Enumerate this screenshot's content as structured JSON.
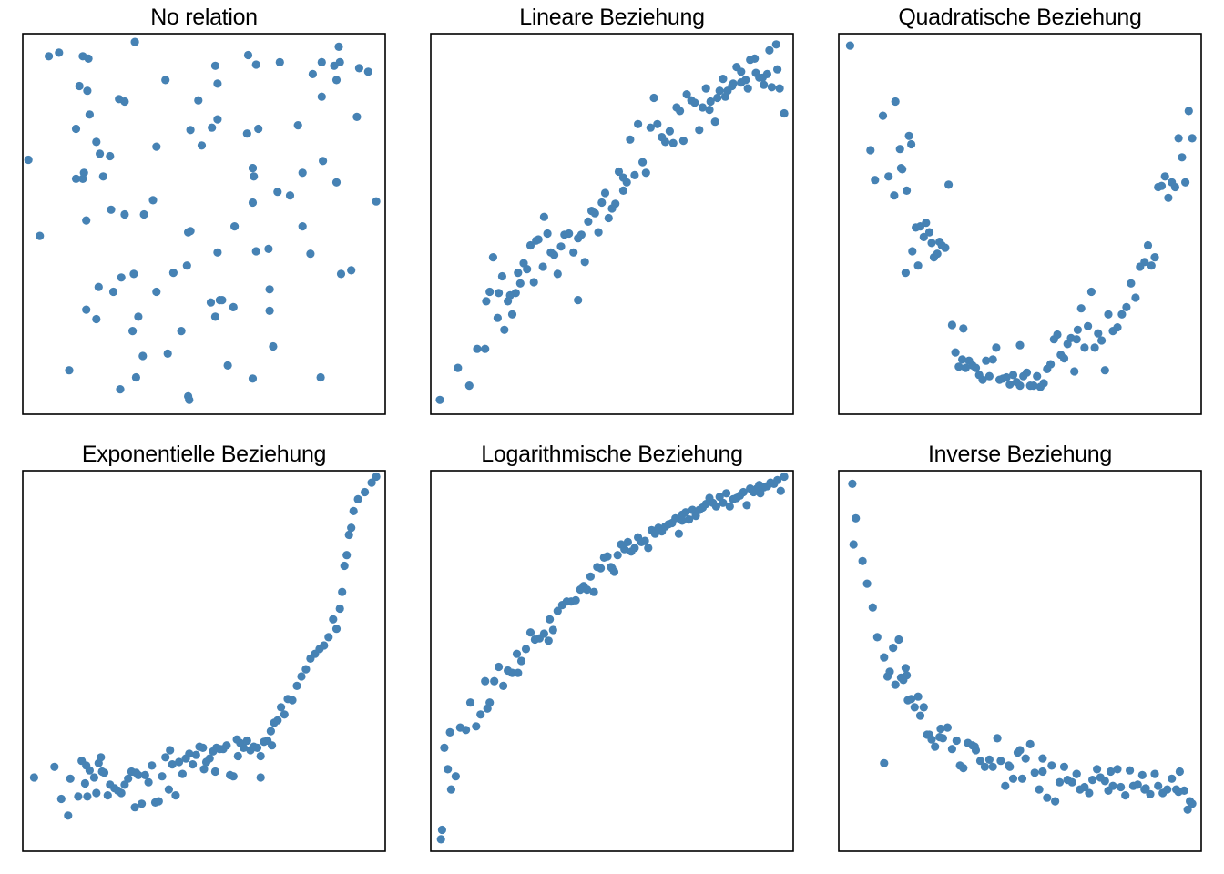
{
  "colors": {
    "point": "#4682B4",
    "frame": "#000000",
    "background": "#ffffff"
  },
  "chart_data": [
    {
      "type": "scatter",
      "title": "No relation",
      "xlim": [
        -1.6,
        1.6
      ],
      "ylim": [
        -1.6,
        1.6
      ],
      "axes_visible": false,
      "grid": false,
      "x": [
        0.43,
        0.46,
        -0.83,
        -1.45,
        -1.1,
        -0.02,
        -1.55,
        1.03,
        1.3,
        -0.89,
        -0.58,
        -1.37,
        1.35,
        0.38,
        0.26,
        -0.7,
        -0.34,
        0.58,
        0.43,
        0.87,
        0.1,
        -0.95,
        -0.53,
        0.57,
        0.27,
        0.76,
        0.87,
        0.46,
        1.45,
        0.12,
        -0.27,
        -1.04,
        -0.82,
        0.21,
        0.1,
        0.67,
        1.17,
        0.94,
        -0.92,
        -1.06,
        -0.12,
        -1.28,
        0.14,
        0.12,
        -0.14,
        -0.54,
        -0.32,
        -0.7,
        -1.07,
        -1.19,
        -0.63,
        1.2,
        1.04,
        1.37,
        0.65,
        -0.42,
        0.58,
        1.17,
        1.05,
        -1.03,
        -1.13,
        -0.93,
        -1.02,
        -0.74,
        0.43,
        0.61,
        -1.13,
        -0.14,
        0.12,
        1.21,
        -0.62,
        -0.75,
        -1.07,
        -1.04,
        -0.45,
        -0.8,
        -0.2,
        -0.61,
        -0.95,
        -0.6,
        0.96,
        -1.01,
        1.52,
        1.04,
        -0.73,
        -0.13,
        0.83,
        0.16,
        0.44,
        -0.15,
        0.06,
        -0.12,
        -0.42,
        0.43,
        -0.05,
        0.07,
        1.19,
        1.15,
        0.39,
        0.48
      ],
      "y": [
        -1.3,
        1.34,
        0.57,
        -0.1,
        1.16,
        0.66,
        0.54,
        -1.29,
        -0.39,
        0.4,
        -0.78,
        1.41,
        0.9,
        0.76,
        -0.7,
        0.08,
        1.21,
        -0.55,
        0.47,
        -0.02,
        1.33,
        -0.8,
        0.08,
        -0.21,
        -0.02,
        0.24,
        0.43,
        -0.23,
        1.28,
        1.18,
        -0.41,
        0.03,
        0.12,
        -1.19,
        -0.78,
        1.36,
        0.35,
        -0.25,
        0.59,
        0.43,
        -0.06,
        1.44,
        -0.64,
        -0.24,
        -0.07,
        -1.11,
        -1.09,
        1.03,
        1.41,
        -1.23,
        -0.9,
        1.36,
        1.07,
        1.31,
        0.27,
        0.65,
        -0.73,
        1.21,
        0.53,
        1.12,
        0.8,
        -0.53,
        1.39,
        -1.39,
        0.47,
        -1.03,
        0.38,
        -1.45,
        0.88,
        -0.42,
        -0.42,
        1.05,
        0.38,
        -0.72,
        0.2,
        -0.57,
        -0.9,
        1.53,
        0.69,
        -1.29,
        1.26,
        0.92,
        0.19,
        1.36,
        -0.45,
        -1.48,
        0.83,
        -0.64,
        0.4,
        -0.35,
        -0.66,
        0.79,
        -0.57,
        0.18,
        1.04,
        0.81,
        1.49,
        1.33,
        1.42,
        0.8
      ]
    },
    {
      "type": "scatter",
      "title": "Lineare Beziehung",
      "xlim": [
        -1.6,
        1.6
      ],
      "ylim": [
        -1.6,
        1.6
      ],
      "axes_visible": false,
      "grid": false,
      "x": [
        -1.52,
        -1.36,
        -1.26,
        -1.19,
        -1.12,
        -1.11,
        -1.08,
        -1.05,
        -1.01,
        -1.0,
        -0.97,
        -0.95,
        -0.92,
        -0.88,
        -0.85,
        -0.83,
        -0.81,
        -0.78,
        -0.75,
        -0.72,
        -0.69,
        -0.67,
        -0.65,
        -0.61,
        -0.57,
        -0.54,
        -0.51,
        -0.48,
        -0.45,
        -0.42,
        -0.38,
        -0.34,
        -0.3,
        -0.27,
        -0.24,
        -0.21,
        -0.18,
        -0.15,
        -0.12,
        -0.09,
        -0.06,
        -0.03,
        0.0,
        0.03,
        0.06,
        0.1,
        0.13,
        0.16,
        0.2,
        0.23,
        0.27,
        0.3,
        0.34,
        0.37,
        0.4,
        0.44,
        0.47,
        0.51,
        0.54,
        0.57,
        0.6,
        0.63,
        0.66,
        0.7,
        0.73,
        0.77,
        0.8,
        0.83,
        0.87,
        0.91,
        0.95,
        0.98,
        1.02,
        1.06,
        1.1,
        1.14,
        1.18,
        1.22,
        1.26,
        1.3,
        1.34,
        1.37,
        1.41,
        1.45,
        1.48,
        1.52,
        1.46,
        1.39,
        1.33,
        1.27,
        1.2,
        1.14,
        1.07,
        1.0,
        0.93,
        0.86,
        -0.9,
        -0.6,
        -0.3,
        0.1
      ],
      "y": [
        -1.48,
        -1.21,
        -1.36,
        -1.05,
        -1.05,
        -0.65,
        -0.57,
        -0.28,
        -0.79,
        -0.58,
        -0.44,
        -0.89,
        -0.65,
        -0.76,
        -0.58,
        -0.41,
        -0.5,
        -0.33,
        -0.38,
        -0.18,
        -0.49,
        -0.14,
        -0.13,
        -0.36,
        -0.08,
        -0.24,
        -0.26,
        -0.42,
        -0.19,
        -0.09,
        -0.08,
        -0.24,
        -0.12,
        -0.09,
        -0.32,
        0.02,
        0.11,
        0.09,
        -0.07,
        0.18,
        0.26,
        0.05,
        0.13,
        0.17,
        0.44,
        0.28,
        0.35,
        0.71,
        0.41,
        0.84,
        0.52,
        0.43,
        0.81,
        1.06,
        0.84,
        0.73,
        0.69,
        0.78,
        0.68,
        0.98,
        0.95,
        0.7,
        1.09,
        1.04,
        1.02,
        0.79,
        0.98,
        1.14,
        1.03,
        0.86,
        1.12,
        1.22,
        1.12,
        1.16,
        1.32,
        1.28,
        1.21,
        1.38,
        1.39,
        1.23,
        1.17,
        1.26,
        1.15,
        1.51,
        1.14,
        0.93,
        1.3,
        1.46,
        1.23,
        1.27,
        1.14,
        1.19,
        1.18,
        1.07,
        1.06,
        0.96,
        -0.6,
        0.06,
        -0.64,
        0.39
      ]
    },
    {
      "type": "scatter",
      "title": "Quadratische Beziehung",
      "xlim": [
        -1.6,
        1.6
      ],
      "ylim": [
        -1.6,
        1.6
      ],
      "axes_visible": false,
      "grid": false,
      "x": [
        -1.5,
        -1.32,
        -1.28,
        -1.21,
        -1.16,
        -1.11,
        -1.1,
        -1.06,
        -1.05,
        -1.04,
        -1.01,
        -1.0,
        -0.98,
        -0.96,
        -0.95,
        -0.92,
        -0.9,
        -0.88,
        -0.85,
        -0.83,
        -0.8,
        -0.78,
        -0.76,
        -0.73,
        -0.71,
        -0.69,
        -0.66,
        -0.63,
        -0.6,
        -0.57,
        -0.54,
        -0.51,
        -0.48,
        -0.45,
        -0.42,
        -0.39,
        -0.36,
        -0.33,
        -0.3,
        -0.27,
        -0.24,
        -0.21,
        -0.18,
        -0.15,
        -0.12,
        -0.09,
        -0.06,
        -0.03,
        0.0,
        0.03,
        0.06,
        0.09,
        0.12,
        0.15,
        0.18,
        0.21,
        0.24,
        0.27,
        0.3,
        0.33,
        0.36,
        0.39,
        0.42,
        0.45,
        0.48,
        0.51,
        0.54,
        0.57,
        0.6,
        0.63,
        0.66,
        0.69,
        0.72,
        0.75,
        0.78,
        0.82,
        0.86,
        0.9,
        0.94,
        0.98,
        1.02,
        1.06,
        1.1,
        1.13,
        1.16,
        1.19,
        1.22,
        1.25,
        1.28,
        1.31,
        1.34,
        1.37,
        1.4,
        1.43,
        1.46,
        1.49,
        1.52,
        -0.5,
        0.5,
        0.0
      ],
      "y": [
        1.5,
        0.62,
        0.37,
        0.91,
        0.4,
        0.24,
        1.03,
        0.63,
        0.47,
        0.46,
        -0.41,
        0.28,
        0.74,
        0.67,
        -0.23,
        -0.03,
        -0.35,
        -0.02,
        -0.11,
        0.01,
        -0.07,
        -0.16,
        -0.28,
        -0.25,
        -0.15,
        -0.18,
        -0.2,
        0.33,
        -0.85,
        -1.08,
        -1.2,
        -1.14,
        -1.21,
        -1.15,
        -1.19,
        -1.21,
        -1.27,
        -1.31,
        -1.15,
        -1.28,
        -1.14,
        -1.04,
        -1.31,
        -1.3,
        -1.29,
        -1.35,
        -1.27,
        -1.33,
        -1.36,
        -1.28,
        -1.25,
        -1.36,
        -1.36,
        -1.28,
        -1.37,
        -1.34,
        -1.22,
        -1.18,
        -0.97,
        -0.93,
        -1.1,
        -1.13,
        -1.01,
        -0.96,
        -1.24,
        -0.89,
        -0.71,
        -1.04,
        -0.86,
        -0.57,
        -1.04,
        -0.92,
        -0.98,
        -1.23,
        -0.76,
        -0.9,
        -0.87,
        -0.76,
        -0.7,
        -0.5,
        -0.62,
        -0.36,
        -0.32,
        -0.18,
        -0.35,
        -0.28,
        0.31,
        0.32,
        0.4,
        0.22,
        0.35,
        0.31,
        0.72,
        0.56,
        0.35,
        0.95,
        0.72,
        -0.88,
        -0.97,
        -1.02
      ]
    },
    {
      "type": "scatter",
      "title": "Exponentielle Beziehung",
      "xlim": [
        -1.6,
        1.6
      ],
      "ylim": [
        -1.6,
        1.6
      ],
      "axes_visible": false,
      "grid": false,
      "x": [
        -1.5,
        -1.32,
        -1.26,
        -1.18,
        -1.11,
        -1.08,
        -1.05,
        -1.04,
        -1.03,
        -1.01,
        -0.97,
        -0.95,
        -0.93,
        -0.91,
        -0.88,
        -0.85,
        -0.83,
        -0.79,
        -0.76,
        -0.73,
        -0.7,
        -0.67,
        -0.64,
        -0.61,
        -0.58,
        -0.55,
        -0.52,
        -0.49,
        -0.46,
        -0.43,
        -0.4,
        -0.37,
        -0.34,
        -0.31,
        -0.28,
        -0.25,
        -0.22,
        -0.19,
        -0.16,
        -0.13,
        -0.1,
        -0.07,
        -0.04,
        -0.01,
        0.02,
        0.05,
        0.08,
        0.11,
        0.14,
        0.17,
        0.2,
        0.23,
        0.26,
        0.29,
        0.32,
        0.35,
        0.38,
        0.41,
        0.44,
        0.47,
        0.5,
        0.53,
        0.56,
        0.59,
        0.62,
        0.65,
        0.68,
        0.71,
        0.74,
        0.78,
        0.82,
        0.86,
        0.9,
        0.94,
        0.98,
        1.02,
        1.06,
        1.1,
        1.14,
        1.17,
        1.2,
        1.22,
        1.24,
        1.26,
        1.28,
        1.3,
        1.32,
        1.36,
        1.42,
        1.48,
        1.52,
        -0.6,
        -0.3,
        0.0,
        0.3,
        0.6,
        -1.2,
        -0.9,
        0.1,
        0.5
      ],
      "y": [
        -0.98,
        -0.89,
        -1.16,
        -0.99,
        -1.14,
        -0.84,
        -1.03,
        -0.88,
        -1.14,
        -0.92,
        -0.98,
        -1.11,
        -0.86,
        -0.81,
        -0.94,
        -1.13,
        -1.04,
        -1.07,
        -1.09,
        -1.11,
        -1.04,
        -0.99,
        -0.93,
        -1.23,
        -0.96,
        -1.2,
        -0.96,
        -1.02,
        -0.88,
        -1.19,
        -1.18,
        -0.97,
        -0.81,
        -1.08,
        -0.87,
        -1.13,
        -0.85,
        -0.95,
        -0.82,
        -0.78,
        -0.87,
        -0.79,
        -0.72,
        -0.73,
        -0.85,
        -0.82,
        -0.76,
        -0.73,
        -0.74,
        -0.74,
        -0.71,
        -0.96,
        -0.97,
        -0.66,
        -0.69,
        -0.73,
        -0.67,
        -0.75,
        -0.72,
        -0.73,
        -0.8,
        -0.68,
        -0.67,
        -0.59,
        -0.52,
        -0.5,
        -0.39,
        -0.45,
        -0.32,
        -0.33,
        -0.21,
        -0.13,
        -0.07,
        0.02,
        0.06,
        0.1,
        0.13,
        0.2,
        0.35,
        0.27,
        0.44,
        0.58,
        0.8,
        0.89,
        1.06,
        1.12,
        1.26,
        1.36,
        1.42,
        1.5,
        1.55,
        -0.94,
        -0.75,
        -0.91,
        -0.8,
        -0.71,
        -1.3,
        -0.93,
        -0.93,
        -0.98
      ]
    },
    {
      "type": "scatter",
      "title": "Logarithmische Beziehung",
      "xlim": [
        -1.6,
        1.6
      ],
      "ylim": [
        -1.6,
        1.6
      ],
      "axes_visible": false,
      "grid": false,
      "x": [
        -1.51,
        -1.5,
        -1.48,
        -1.45,
        -1.42,
        -1.38,
        -1.34,
        -1.29,
        -1.25,
        -1.2,
        -1.16,
        -1.12,
        -1.08,
        -1.04,
        -1.0,
        -0.96,
        -0.92,
        -0.88,
        -0.84,
        -0.8,
        -0.76,
        -0.72,
        -0.68,
        -0.64,
        -0.6,
        -0.56,
        -0.52,
        -0.48,
        -0.44,
        -0.4,
        -0.36,
        -0.32,
        -0.28,
        -0.25,
        -0.22,
        -0.19,
        -0.16,
        -0.13,
        -0.1,
        -0.07,
        -0.04,
        -0.01,
        0.02,
        0.05,
        0.08,
        0.11,
        0.14,
        0.17,
        0.2,
        0.23,
        0.26,
        0.29,
        0.32,
        0.35,
        0.38,
        0.41,
        0.44,
        0.47,
        0.5,
        0.53,
        0.56,
        0.59,
        0.62,
        0.65,
        0.68,
        0.71,
        0.74,
        0.77,
        0.8,
        0.83,
        0.86,
        0.89,
        0.92,
        0.95,
        0.98,
        1.01,
        1.04,
        1.07,
        1.1,
        1.13,
        1.16,
        1.19,
        1.22,
        1.25,
        1.28,
        1.31,
        1.34,
        1.37,
        1.4,
        1.43,
        1.46,
        1.49,
        1.52,
        -1.43,
        -1.1,
        -0.83,
        -0.55,
        0.0,
        0.62,
        1.3
      ],
      "y": [
        -1.5,
        -1.42,
        -0.73,
        -0.91,
        -1.08,
        -0.97,
        -0.56,
        -0.58,
        -0.35,
        -0.55,
        -0.45,
        -0.17,
        -0.35,
        -0.17,
        -0.05,
        -0.21,
        -0.08,
        -0.1,
        0.06,
        0.0,
        0.1,
        0.24,
        0.18,
        0.19,
        0.23,
        0.17,
        0.26,
        0.42,
        0.47,
        0.5,
        0.5,
        0.51,
        0.6,
        0.63,
        0.6,
        0.71,
        0.58,
        0.79,
        0.78,
        0.87,
        0.88,
        0.79,
        0.75,
        0.89,
        0.98,
        0.94,
        1.0,
        0.92,
        0.95,
        1.04,
        1.0,
        1.01,
        0.95,
        1.1,
        1.07,
        1.12,
        1.09,
        1.13,
        1.15,
        1.16,
        1.2,
        1.07,
        1.23,
        1.25,
        1.19,
        1.27,
        1.22,
        1.27,
        1.29,
        1.32,
        1.37,
        1.33,
        1.3,
        1.38,
        1.33,
        1.41,
        1.3,
        1.36,
        1.37,
        1.39,
        1.42,
        1.31,
        1.45,
        1.42,
        1.45,
        1.41,
        1.46,
        1.47,
        1.5,
        1.49,
        1.52,
        1.43,
        1.55,
        -0.6,
        -0.4,
        -0.1,
        0.35,
        0.78,
        1.18,
        1.48
      ]
    },
    {
      "type": "scatter",
      "title": "Inverse Beziehung",
      "xlim": [
        -1.6,
        1.6
      ],
      "ylim": [
        -1.6,
        1.6
      ],
      "axes_visible": false,
      "grid": false,
      "x": [
        -1.48,
        -1.45,
        -1.47,
        -1.39,
        -1.35,
        -1.3,
        -1.26,
        -1.2,
        -1.17,
        -1.15,
        -1.12,
        -1.1,
        -1.07,
        -1.05,
        -1.03,
        -1.01,
        -0.99,
        -0.96,
        -0.93,
        -0.9,
        -0.88,
        -0.85,
        -0.82,
        -0.78,
        -0.75,
        -0.71,
        -0.68,
        -0.64,
        -0.6,
        -0.56,
        -0.53,
        -0.5,
        -0.46,
        -0.42,
        -0.39,
        -0.35,
        -0.31,
        -0.27,
        -0.24,
        -0.2,
        -0.17,
        -0.13,
        -0.09,
        -0.06,
        -0.02,
        0.02,
        0.05,
        0.09,
        0.13,
        0.17,
        0.2,
        0.24,
        0.28,
        0.31,
        0.35,
        0.39,
        0.42,
        0.46,
        0.5,
        0.53,
        0.57,
        0.61,
        0.64,
        0.68,
        0.71,
        0.75,
        0.78,
        0.82,
        0.86,
        0.89,
        0.93,
        0.97,
        1.0,
        1.04,
        1.08,
        1.11,
        1.15,
        1.19,
        1.22,
        1.26,
        1.3,
        1.34,
        1.38,
        1.41,
        1.45,
        1.48,
        1.5,
        1.52,
        -1.0,
        -0.7,
        -0.4,
        -0.1,
        0.2,
        0.5,
        0.8,
        1.1,
        1.4,
        -1.2,
        -0.8,
        0.0
      ],
      "y": [
        1.49,
        1.2,
        0.98,
        0.84,
        0.65,
        0.45,
        0.2,
        0.03,
        -0.13,
        -0.09,
        0.11,
        -0.2,
        0.18,
        -0.14,
        -0.16,
        -0.06,
        -0.33,
        -0.32,
        -0.39,
        -0.3,
        -0.46,
        -0.39,
        -0.62,
        -0.66,
        -0.72,
        -0.64,
        -0.65,
        -0.56,
        -0.74,
        -0.67,
        -0.88,
        -0.9,
        -0.69,
        -0.71,
        -0.75,
        -0.84,
        -0.89,
        -0.83,
        -0.89,
        -0.65,
        -0.84,
        -1.05,
        -0.89,
        -0.99,
        -0.77,
        -0.99,
        -0.82,
        -0.7,
        -0.94,
        -1.08,
        -0.93,
        -1.15,
        -0.88,
        -1.18,
        -1.02,
        -0.89,
        -1.0,
        -1.02,
        -0.95,
        -1.08,
        -1.06,
        -1.11,
        -1.0,
        -0.91,
        -0.98,
        -1.01,
        -1.09,
        -1.05,
        -0.91,
        -1.06,
        -1.13,
        -0.92,
        -1.05,
        -1.04,
        -0.96,
        -1.07,
        -1.12,
        -0.95,
        -1.05,
        -1.11,
        -1.08,
        -0.99,
        -1.08,
        -0.93,
        -1.09,
        -1.25,
        -1.18,
        -1.2,
        -0.12,
        -0.57,
        -0.72,
        -0.88,
        -0.82,
        -0.95,
        -0.93,
        -1.08,
        -1.1,
        -0.86,
        -0.62,
        -0.75
      ]
    }
  ]
}
